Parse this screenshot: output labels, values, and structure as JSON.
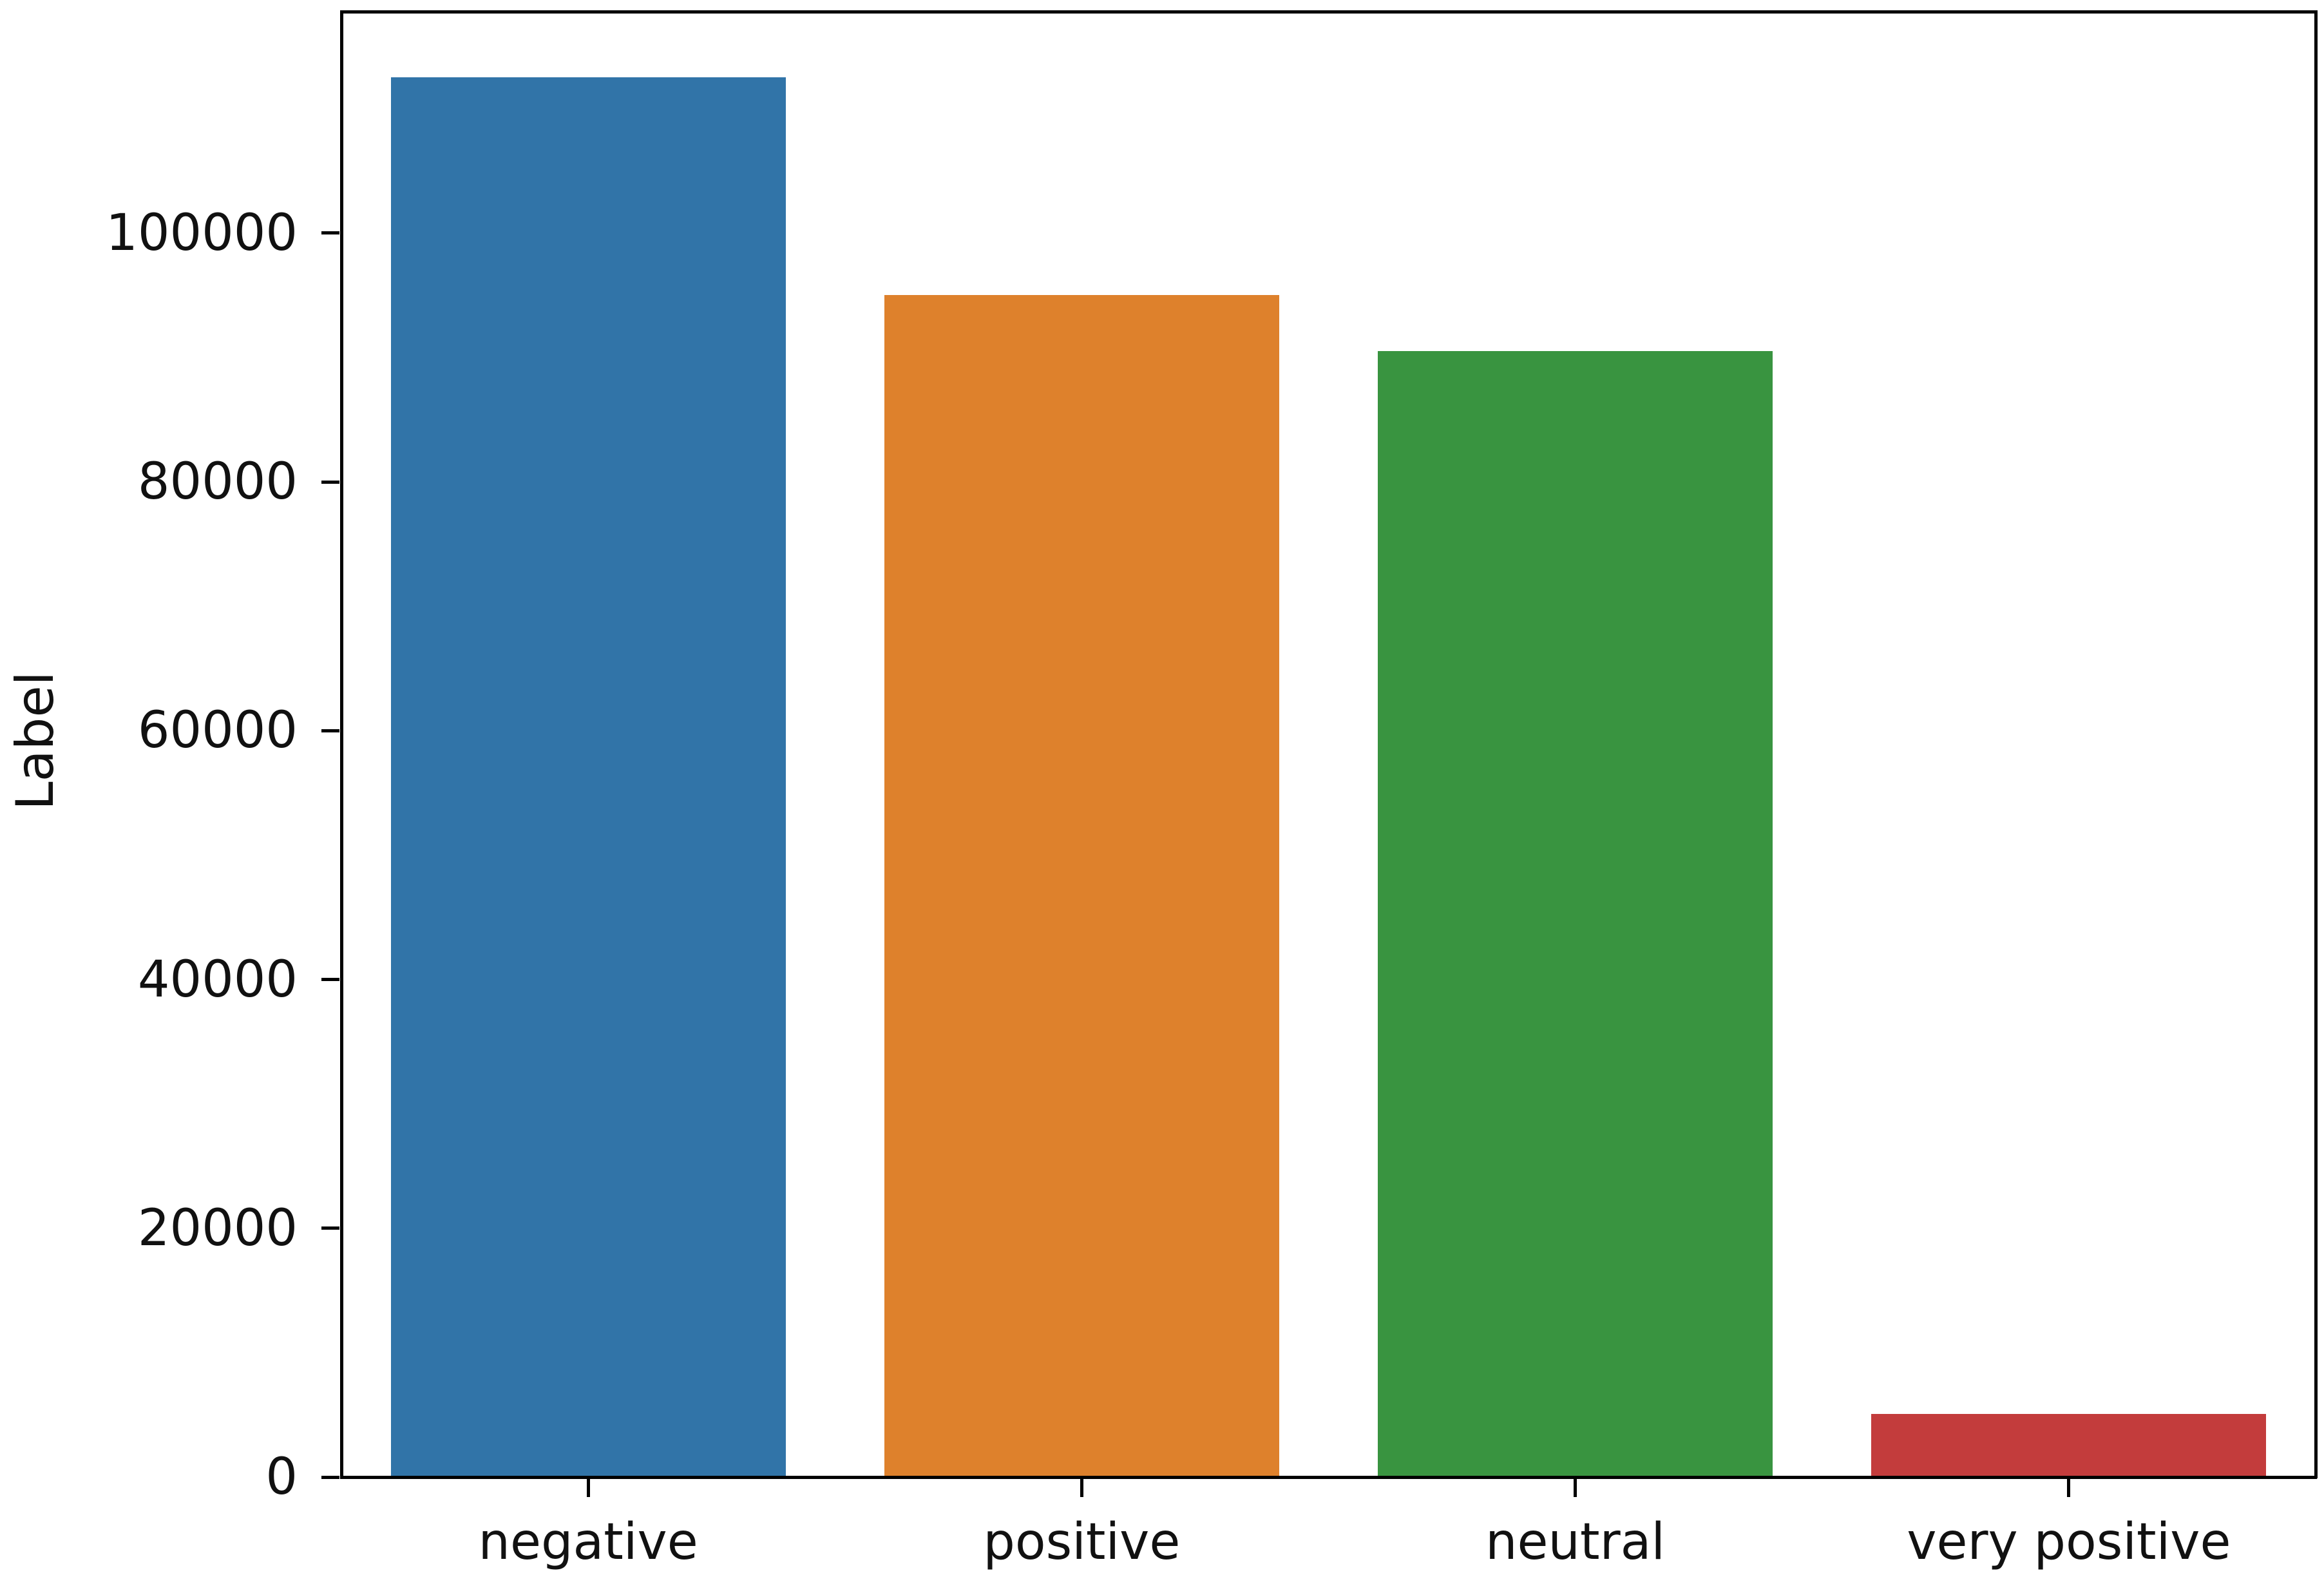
{
  "figure": {
    "background": "#ffffff",
    "text_color": "#111111",
    "spine_color": "#000000"
  },
  "chart_data": {
    "type": "bar",
    "categories": [
      "negative",
      "positive",
      "neutral",
      "very positive"
    ],
    "values": [
      112500,
      95000,
      90500,
      5100
    ],
    "bar_colors": [
      "#3174a8",
      "#de812c",
      "#399440",
      "#c33c3c"
    ],
    "title": "",
    "xlabel": "",
    "ylabel": "Label",
    "ylim": [
      0,
      117800
    ],
    "yticks": [
      0,
      20000,
      40000,
      60000,
      80000,
      100000
    ],
    "ytick_labels": [
      "0",
      "20000",
      "40000",
      "60000",
      "80000",
      "100000"
    ],
    "grid": false,
    "legend": "none",
    "bar_width_fraction": 0.8
  }
}
